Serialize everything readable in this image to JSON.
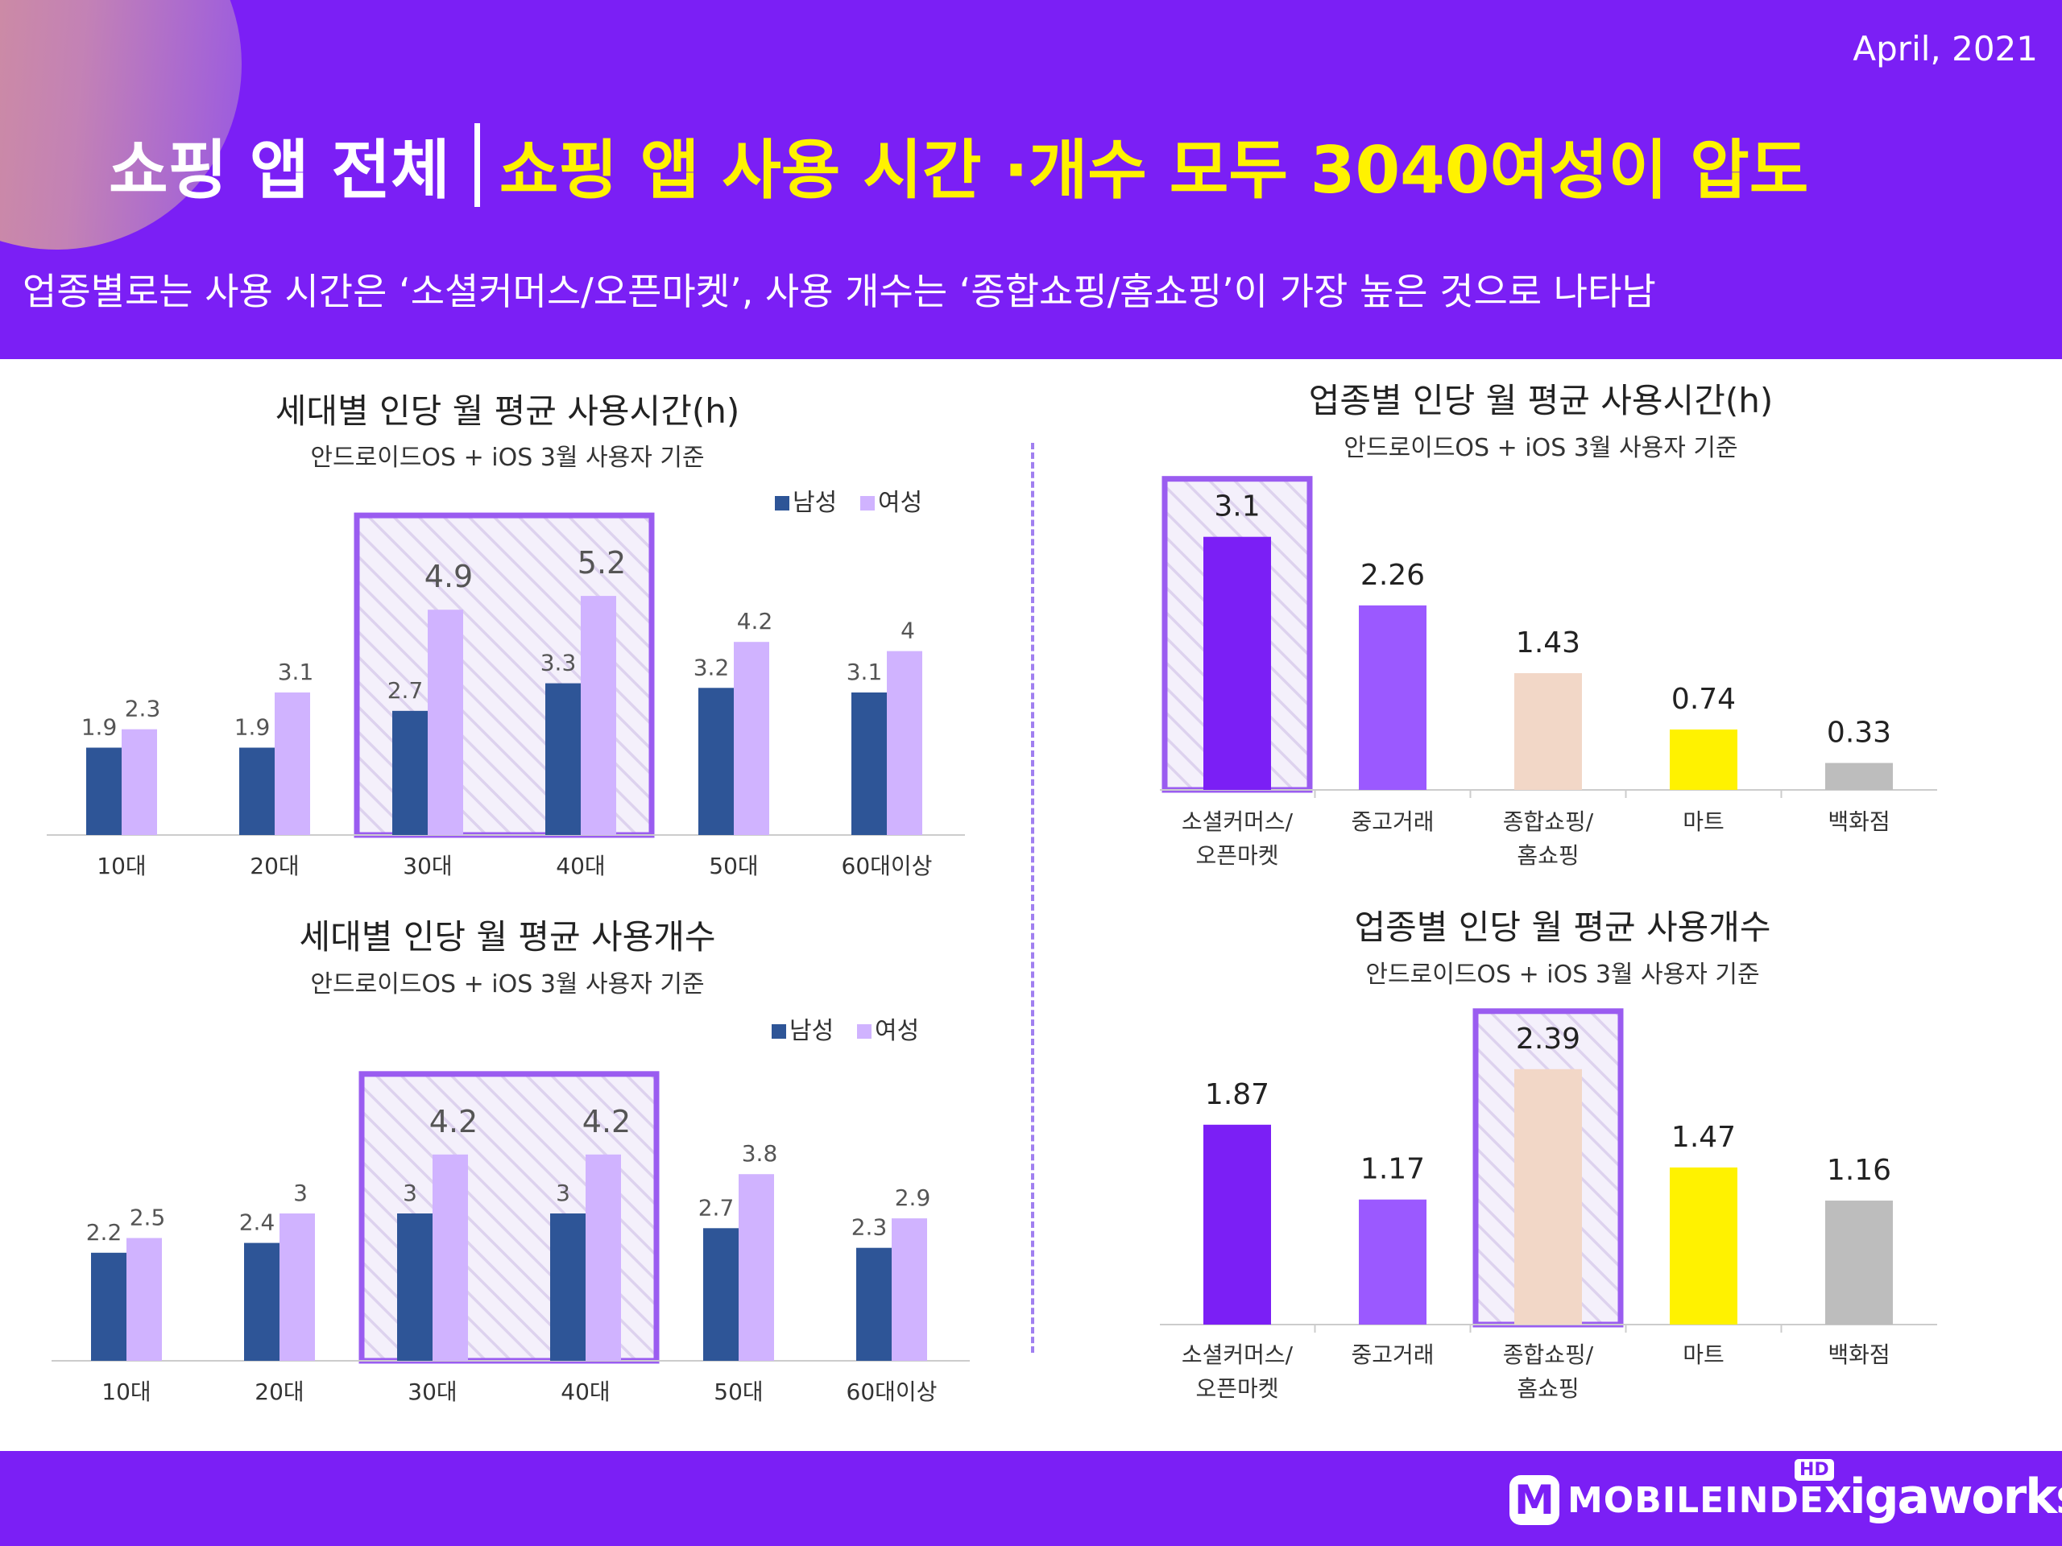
{
  "header": {
    "date": "April, 2021",
    "title_left": "쇼핑 앱 전체",
    "title_right": "쇼핑 앱 사용 시간 ·개수 모두 3040여성이 압도",
    "subtitle": "업종별로는 사용 시간은 ‘소셜커머스/오픈마켓’, 사용 개수는 ‘종합쇼핑/홈쇼핑’이 가장 높은 것으로 나타남"
  },
  "footer": {
    "logo1_badge": "M",
    "logo1_text": "MOBILEINDEX",
    "logo1_hd": "HD",
    "logo2_text": "igaworks"
  },
  "colors": {
    "male": "#2e5597",
    "female": "#d0b3ff",
    "highlight_border": "#9a5cf0",
    "axis": "#cccccc"
  },
  "chart_data": [
    {
      "id": "age-time",
      "type": "bar",
      "title": "세대별 인당 월 평균 사용시간(h)",
      "subtitle": "안드로이드OS + iOS 3월 사용자 기준",
      "categories": [
        "10대",
        "20대",
        "30대",
        "40대",
        "50대",
        "60대이상"
      ],
      "series": [
        {
          "name": "남성",
          "color": "#2e5597",
          "values": [
            1.9,
            1.9,
            2.7,
            3.3,
            3.2,
            3.1
          ]
        },
        {
          "name": "여성",
          "color": "#d0b3ff",
          "values": [
            2.3,
            3.1,
            4.9,
            5.2,
            4.2,
            4
          ]
        }
      ],
      "legend_position": "top-right",
      "highlight": [
        "30대",
        "40대"
      ],
      "ylim": [
        0,
        6.2
      ]
    },
    {
      "id": "age-count",
      "type": "bar",
      "title": "세대별 인당 월 평균 사용개수",
      "subtitle": "안드로이드OS + iOS 3월 사용자 기준",
      "categories": [
        "10대",
        "20대",
        "30대",
        "40대",
        "50대",
        "60대이상"
      ],
      "series": [
        {
          "name": "남성",
          "color": "#2e5597",
          "values": [
            2.2,
            2.4,
            3,
            3,
            2.7,
            2.3
          ]
        },
        {
          "name": "여성",
          "color": "#d0b3ff",
          "values": [
            2.5,
            3,
            4.2,
            4.2,
            3.8,
            2.9
          ]
        }
      ],
      "legend_position": "top-right",
      "highlight": [
        "30대",
        "40대"
      ],
      "ylim": [
        0,
        5.0
      ]
    },
    {
      "id": "industry-time",
      "type": "bar",
      "title": "업종별 인당 월 평균 사용시간(h)",
      "subtitle": "안드로이드OS + iOS 3월 사용자 기준",
      "categories": [
        "소셜커머스/\n오픈마켓",
        "중고거래",
        "종합쇼핑/\n홈쇼핑",
        "마트",
        "백화점"
      ],
      "values": [
        3.1,
        2.26,
        1.43,
        0.74,
        0.33
      ],
      "colors": [
        "#7b1ff5",
        "#9b59ff",
        "#f2d7c7",
        "#fff200",
        "#bdbdbd"
      ],
      "highlight": [
        "소셜커머스/\n오픈마켓"
      ],
      "ylim": [
        0,
        3.6
      ]
    },
    {
      "id": "industry-count",
      "type": "bar",
      "title": "업종별 인당 월 평균 사용개수",
      "subtitle": "안드로이드OS + iOS 3월 사용자 기준",
      "categories": [
        "소셜커머스/\n오픈마켓",
        "중고거래",
        "종합쇼핑/\n홈쇼핑",
        "마트",
        "백화점"
      ],
      "values": [
        1.87,
        1.17,
        2.39,
        1.47,
        1.16
      ],
      "colors": [
        "#7b1ff5",
        "#9b59ff",
        "#f2d7c7",
        "#fff200",
        "#bdbdbd"
      ],
      "highlight": [
        "종합쇼핑/\n홈쇼핑"
      ],
      "ylim": [
        0,
        2.75
      ]
    }
  ]
}
